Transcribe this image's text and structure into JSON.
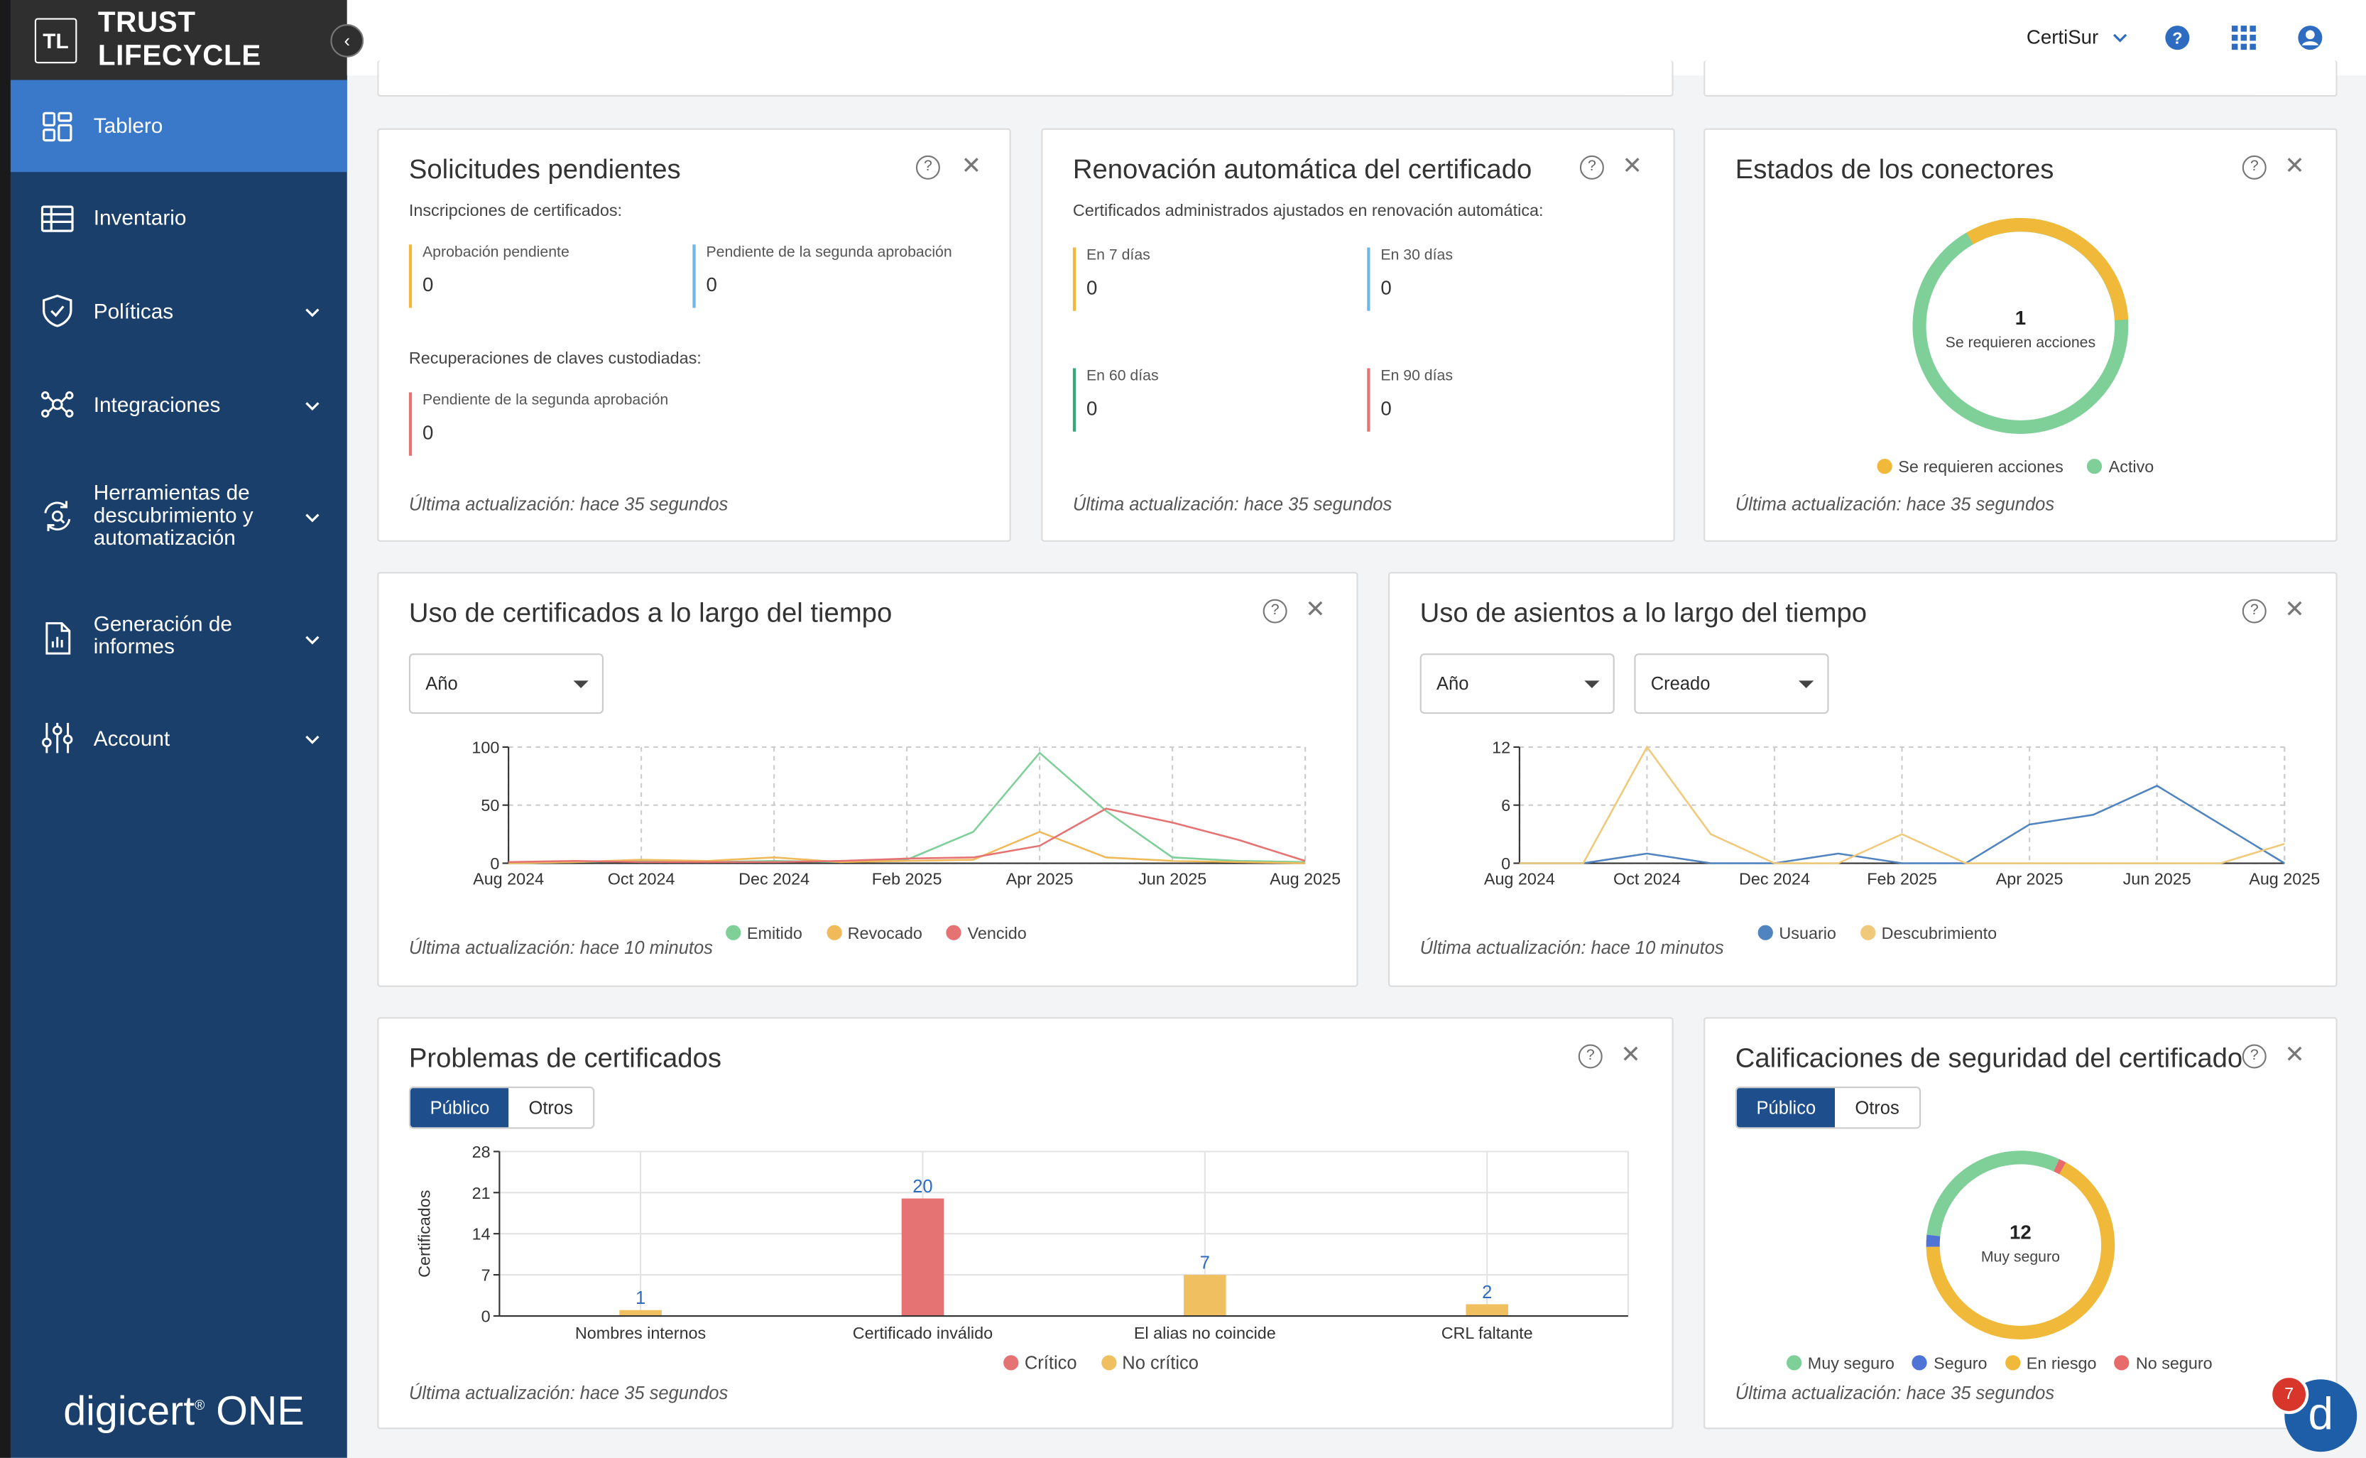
{
  "brand": {
    "logo": "TL",
    "name": "TRUST LIFECYCLE",
    "footer": "digicert",
    "footer_mark": "®",
    "footer_suffix": " ONE"
  },
  "sidebar": {
    "items": [
      {
        "label": "Tablero",
        "icon": "dashboard-icon",
        "active": true
      },
      {
        "label": "Inventario",
        "icon": "table-icon"
      },
      {
        "label": "Políticas",
        "icon": "shield-icon"
      },
      {
        "label": "Integraciones",
        "icon": "network-icon"
      },
      {
        "label": "Herramientas de descubrimiento y automatización",
        "icon": "refresh-search-icon"
      },
      {
        "label": "Generación de informes",
        "icon": "report-icon"
      },
      {
        "label": "Account",
        "icon": "sliders-icon"
      }
    ]
  },
  "topbar": {
    "account": "CertiSur"
  },
  "pending": {
    "title": "Solicitudes pendientes",
    "enroll_label": "Inscripciones de certificados:",
    "approval_label": "Aprobación pendiente",
    "approval_value": "0",
    "second_label": "Pendiente de la segunda aprobación",
    "second_value": "0",
    "keys_label": "Recuperaciones de claves custodiadas:",
    "keys_second_label": "Pendiente de la segunda aprobación",
    "keys_second_value": "0",
    "updated": "Última actualización: hace 35 segundos"
  },
  "renewal": {
    "title": "Renovación automática del certificado",
    "sub": "Certificados administrados ajustados en renovación automática:",
    "d7_label": "En 7 días",
    "d7_value": "0",
    "d30_label": "En 30 días",
    "d30_value": "0",
    "d60_label": "En 60 días",
    "d60_value": "0",
    "d90_label": "En 90 días",
    "d90_value": "0",
    "updated": "Última actualización: hace 35 segundos"
  },
  "connectors": {
    "title": "Estados de los conectores",
    "center_value": "1",
    "center_label": "Se requieren acciones",
    "legend_action": "Se requieren acciones",
    "legend_active": "Activo",
    "updated": "Última actualización: hace 35 segundos",
    "colors": {
      "action": "#f0b93a",
      "active": "#7fcf99"
    }
  },
  "cert_usage": {
    "title": "Uso de certificados a lo largo del tiempo",
    "select": "Año",
    "updated": "Última actualización: hace 10 minutos"
  },
  "seat_usage": {
    "title": "Uso de asientos a lo largo del tiempo",
    "select1": "Año",
    "select2": "Creado",
    "updated": "Última actualización: hace 10 minutos"
  },
  "problems": {
    "title": "Problemas de certificados",
    "tab_public": "Público",
    "tab_other": "Otros",
    "updated": "Última actualización: hace 35 segundos"
  },
  "ratings": {
    "title": "Calificaciones de seguridad del certificado",
    "tab_public": "Público",
    "tab_other": "Otros",
    "center_value": "12",
    "center_label": "Muy seguro",
    "updated": "Última actualización: hace 35 segundos"
  },
  "notifications": {
    "count": "7",
    "fab": "d"
  },
  "chart_data": [
    {
      "type": "line",
      "title": "Uso de certificados a lo largo del tiempo",
      "x": [
        "Aug 2024",
        "Sep 2024",
        "Oct 2024",
        "Nov 2024",
        "Dec 2024",
        "Jan 2025",
        "Feb 2025",
        "Mar 2025",
        "Apr 2025",
        "May 2025",
        "Jun 2025",
        "Jul 2025",
        "Aug 2025"
      ],
      "xticks": [
        "Aug 2024",
        "Oct 2024",
        "Dec 2024",
        "Feb 2025",
        "Apr 2025",
        "Jun 2025",
        "Aug 2025"
      ],
      "ylim": [
        0,
        100
      ],
      "yticks": [
        0,
        50,
        100
      ],
      "series": [
        {
          "name": "Emitido",
          "color": "#7fcf99",
          "values": [
            0,
            1,
            2,
            1,
            2,
            1,
            3,
            27,
            95,
            45,
            5,
            2,
            1
          ]
        },
        {
          "name": "Revocado",
          "color": "#f0b95a",
          "values": [
            0,
            1,
            3,
            2,
            5,
            1,
            2,
            3,
            27,
            5,
            2,
            1,
            0
          ]
        },
        {
          "name": "Vencido",
          "color": "#e57373",
          "values": [
            1,
            2,
            1,
            1,
            1,
            2,
            4,
            5,
            15,
            47,
            35,
            20,
            2
          ]
        }
      ]
    },
    {
      "type": "line",
      "title": "Uso de asientos a lo largo del tiempo",
      "x": [
        "Aug 2024",
        "Sep 2024",
        "Oct 2024",
        "Nov 2024",
        "Dec 2024",
        "Jan 2025",
        "Feb 2025",
        "Mar 2025",
        "Apr 2025",
        "May 2025",
        "Jun 2025",
        "Jul 2025",
        "Aug 2025"
      ],
      "xticks": [
        "Aug 2024",
        "Oct 2024",
        "Dec 2024",
        "Feb 2025",
        "Apr 2025",
        "Jun 2025",
        "Aug 2025"
      ],
      "ylim": [
        0,
        12
      ],
      "yticks": [
        0,
        6,
        12
      ],
      "series": [
        {
          "name": "Usuario",
          "color": "#4f84c0",
          "values": [
            0,
            0,
            1,
            0,
            0,
            1,
            0,
            0,
            4,
            5,
            8,
            4,
            0
          ]
        },
        {
          "name": "Descubrimiento",
          "color": "#f0c97a",
          "values": [
            0,
            0,
            12,
            3,
            0,
            0,
            3,
            0,
            0,
            0,
            0,
            0,
            2
          ]
        }
      ]
    },
    {
      "type": "bar",
      "title": "Problemas de certificados",
      "ylabel": "Certificados",
      "categories": [
        "Nombres internos",
        "Certificado inválido",
        "El alias no coincide",
        "CRL faltante"
      ],
      "values": [
        1,
        20,
        7,
        2
      ],
      "bar_kind": [
        "No crítico",
        "Crítico",
        "No crítico",
        "No crítico"
      ],
      "ylim": [
        0,
        28
      ],
      "yticks": [
        0,
        7,
        14,
        21,
        28
      ],
      "legend": [
        {
          "name": "Crítico",
          "color": "#e57373"
        },
        {
          "name": "No crítico",
          "color": "#f0c060"
        }
      ]
    },
    {
      "type": "pie",
      "title": "Calificaciones de seguridad del certificado",
      "slices": [
        {
          "name": "Muy seguro",
          "value": 3.6,
          "color": "#7fcf99"
        },
        {
          "name": "Seguro",
          "value": 0.25,
          "color": "#4f74d6"
        },
        {
          "name": "En riesgo",
          "value": 8.0,
          "color": "#f0b93a"
        },
        {
          "name": "No seguro",
          "value": 0.15,
          "color": "#e86a6a"
        }
      ]
    }
  ]
}
